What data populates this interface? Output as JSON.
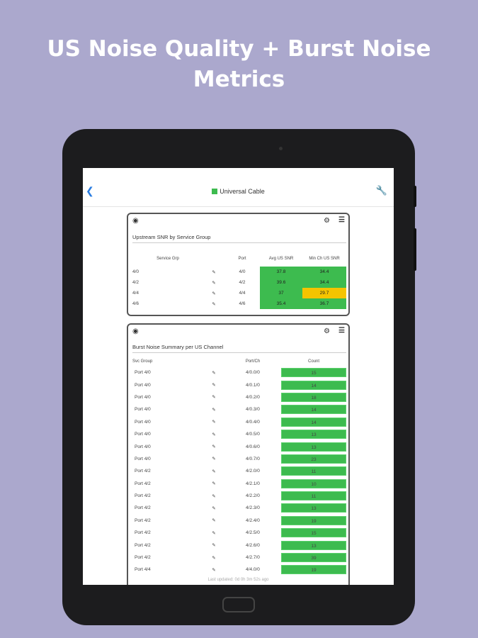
{
  "headline": "US Noise Quality + Burst Noise Metrics",
  "header": {
    "title": "Universal Cable",
    "back_icon": "chevron-left-icon",
    "settings_icon": "wrench-icon",
    "brand_color": "#3dbb4f"
  },
  "snr_card": {
    "title": "Upstream SNR by Service Group",
    "columns": [
      "Service Grp",
      "",
      "Port",
      "Avg US SNR",
      "Min Ch US SNR"
    ],
    "rows": [
      {
        "grp": "4/0",
        "port": "4/0",
        "avg": "37.8",
        "min": "34.4",
        "min_status": "good"
      },
      {
        "grp": "4/2",
        "port": "4/2",
        "avg": "39.6",
        "min": "34.4",
        "min_status": "good"
      },
      {
        "grp": "4/4",
        "port": "4/4",
        "avg": "37",
        "min": "29.7",
        "min_status": "warning"
      },
      {
        "grp": "4/6",
        "port": "4/6",
        "avg": "35.4",
        "min": "36.7",
        "min_status": "good"
      }
    ]
  },
  "burst_card": {
    "title": "Burst Noise Summary per US Channel",
    "columns": [
      "Svc Group",
      "",
      "Port/Ch",
      "Count"
    ],
    "rows": [
      {
        "grp": "Port 4/0",
        "ch": "4/0.0/0",
        "count": "15"
      },
      {
        "grp": "Port 4/0",
        "ch": "4/0.1/0",
        "count": "14"
      },
      {
        "grp": "Port 4/0",
        "ch": "4/0.2/0",
        "count": "18"
      },
      {
        "grp": "Port 4/0",
        "ch": "4/0.3/0",
        "count": "14"
      },
      {
        "grp": "Port 4/0",
        "ch": "4/0.4/0",
        "count": "14"
      },
      {
        "grp": "Port 4/0",
        "ch": "4/0.5/0",
        "count": "13"
      },
      {
        "grp": "Port 4/0",
        "ch": "4/0.6/0",
        "count": "13"
      },
      {
        "grp": "Port 4/0",
        "ch": "4/0.7/0",
        "count": "23"
      },
      {
        "grp": "Port 4/2",
        "ch": "4/2.0/0",
        "count": "11"
      },
      {
        "grp": "Port 4/2",
        "ch": "4/2.1/0",
        "count": "10"
      },
      {
        "grp": "Port 4/2",
        "ch": "4/2.2/0",
        "count": "11"
      },
      {
        "grp": "Port 4/2",
        "ch": "4/2.3/0",
        "count": "13"
      },
      {
        "grp": "Port 4/2",
        "ch": "4/2.4/0",
        "count": "19"
      },
      {
        "grp": "Port 4/2",
        "ch": "4/2.5/0",
        "count": "15"
      },
      {
        "grp": "Port 4/2",
        "ch": "4/2.6/0",
        "count": "13"
      },
      {
        "grp": "Port 4/2",
        "ch": "4/2.7/0",
        "count": "39"
      },
      {
        "grp": "Port 4/4",
        "ch": "4/4.0/0",
        "count": "19"
      }
    ]
  },
  "footer": "Last updated: 0d 0h 3m 52s ago",
  "colors": {
    "good": "#3dbb4f",
    "warning": "#f5c400",
    "background": "#aba8cd"
  }
}
